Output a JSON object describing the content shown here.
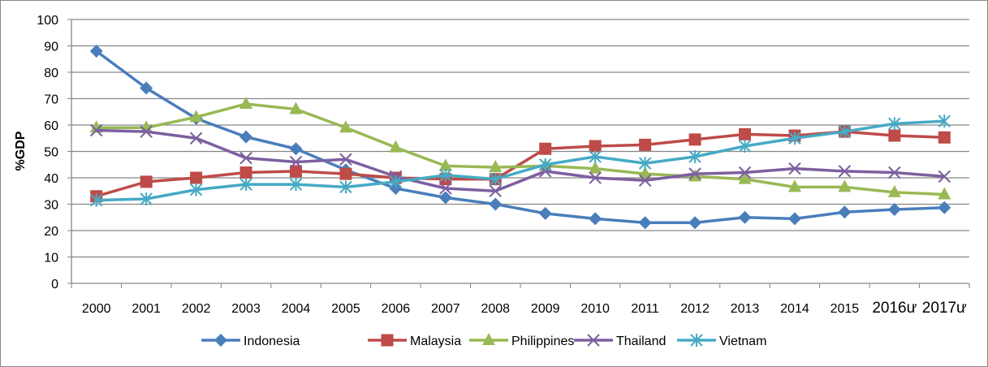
{
  "chart_data": {
    "type": "line",
    "title": "",
    "xlabel": "",
    "ylabel": "%GDP",
    "ylim": [
      0,
      100
    ],
    "yticks": [
      0,
      10,
      20,
      30,
      40,
      50,
      60,
      70,
      80,
      90,
      100
    ],
    "grid": true,
    "legend_position": "bottom",
    "categories": [
      "2000",
      "2001",
      "2002",
      "2003",
      "2004",
      "2005",
      "2006",
      "2007",
      "2008",
      "2009",
      "2010",
      "2011",
      "2012",
      "2013",
      "2014",
      "2015",
      "2016ư",
      "2017ư"
    ],
    "series": [
      {
        "name": "Indonesia",
        "color": "#4a7ebb",
        "marker": "diamond",
        "values": [
          88,
          74,
          62.5,
          55.5,
          51,
          43,
          36,
          32.5,
          30,
          26.5,
          24.5,
          23,
          23,
          25,
          24.5,
          27,
          28,
          28.7
        ]
      },
      {
        "name": "Malaysia",
        "color": "#be4b48",
        "marker": "square",
        "values": [
          33,
          38.5,
          40,
          42,
          42.5,
          41.5,
          40,
          39.5,
          39.5,
          51,
          52,
          52.5,
          54.5,
          56.5,
          56,
          57.5,
          56,
          55.3
        ]
      },
      {
        "name": "Philippines",
        "color": "#98b954",
        "marker": "triangle",
        "values": [
          59,
          59,
          63,
          68,
          66,
          59,
          51.5,
          44.5,
          44,
          44.5,
          43.5,
          41.5,
          40.5,
          39.5,
          36.5,
          36.5,
          34.5,
          33.7
        ]
      },
      {
        "name": "Thailand",
        "color": "#7d5fa0",
        "marker": "x",
        "values": [
          58,
          57.5,
          55,
          47.5,
          46,
          47,
          40.5,
          36,
          35,
          42.5,
          40,
          39,
          41.5,
          42,
          43.5,
          42.5,
          42,
          40.5
        ]
      },
      {
        "name": "Vietnam",
        "color": "#46aac5",
        "marker": "star",
        "values": [
          31.5,
          32,
          35.5,
          37.5,
          37.5,
          36.5,
          38.5,
          41,
          39.5,
          45,
          48,
          45.5,
          48,
          52,
          55,
          57.5,
          60.5,
          61.5
        ]
      }
    ]
  }
}
